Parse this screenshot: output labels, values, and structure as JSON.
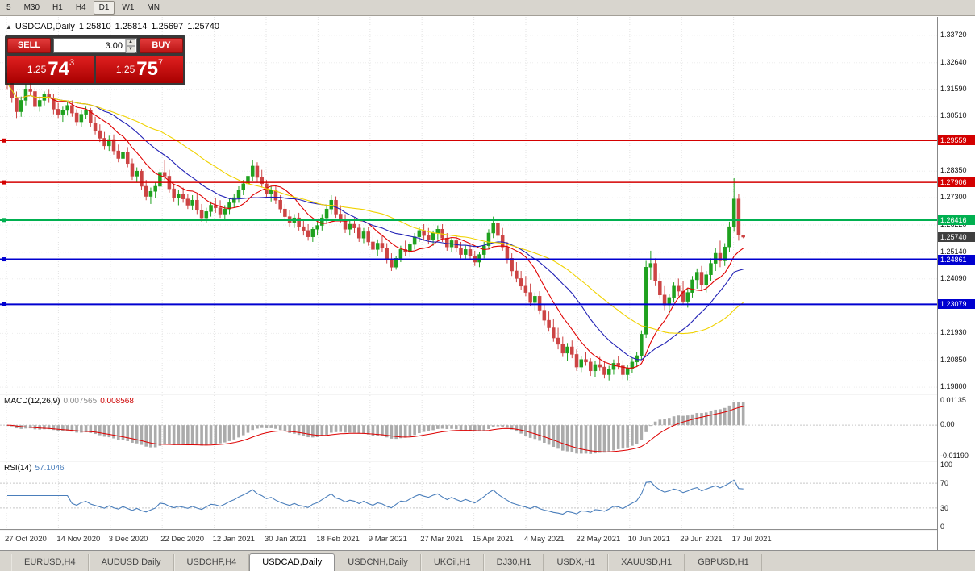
{
  "toolbar": {
    "timeframes": [
      "5",
      "M30",
      "H1",
      "H4",
      "D1",
      "W1",
      "MN"
    ],
    "active": "D1"
  },
  "chart_header": {
    "symbol": "USDCAD,Daily",
    "open": "1.25810",
    "high": "1.25814",
    "low": "1.25697",
    "close": "1.25740"
  },
  "one_click": {
    "sell_label": "SELL",
    "buy_label": "BUY",
    "lots": "3.00",
    "sell_price_prefix": "1.25",
    "sell_price_big": "74",
    "sell_price_sup": "3",
    "buy_price_prefix": "1.25",
    "buy_price_big": "75",
    "buy_price_sup": "7"
  },
  "price_axis": {
    "labels": [
      {
        "v": 1.3372,
        "t": "1.33720"
      },
      {
        "v": 1.3264,
        "t": "1.32640"
      },
      {
        "v": 1.3159,
        "t": "1.31590"
      },
      {
        "v": 1.3051,
        "t": "1.30510"
      },
      {
        "v": 1.2943,
        "t": "1.29430"
      },
      {
        "v": 1.2835,
        "t": "1.28350"
      },
      {
        "v": 1.273,
        "t": "1.27300"
      },
      {
        "v": 1.2622,
        "t": "1.26220"
      },
      {
        "v": 1.2514,
        "t": "1.25140"
      },
      {
        "v": 1.2409,
        "t": "1.24090"
      },
      {
        "v": 1.2301,
        "t": "1.23010"
      },
      {
        "v": 1.2193,
        "t": "1.21930"
      },
      {
        "v": 1.2085,
        "t": "1.20850"
      },
      {
        "v": 1.198,
        "t": "1.19800"
      }
    ],
    "last_price": {
      "v": 1.2574,
      "t": "1.25740",
      "color": "#3f3f3f"
    }
  },
  "hlines": [
    {
      "v": 1.29559,
      "t": "1.29559",
      "color": "#d40000",
      "w": 1.5
    },
    {
      "v": 1.27906,
      "t": "1.27906",
      "color": "#d40000",
      "w": 1.5
    },
    {
      "v": 1.26416,
      "t": "1.26416",
      "color": "#00b050",
      "w": 2.5
    },
    {
      "v": 1.24861,
      "t": "1.24861",
      "color": "#0000d0",
      "w": 2
    },
    {
      "v": 1.23079,
      "t": "1.23079",
      "color": "#0000d0",
      "w": 2
    }
  ],
  "chart_data": {
    "type": "candlestick",
    "symbol": "USDCAD",
    "timeframe": "Daily",
    "x_axis_labels": [
      "27 Oct 2020",
      "14 Nov 2020",
      "3 Dec 2020",
      "22 Dec 2020",
      "12 Jan 2021",
      "30 Jan 2021",
      "18 Feb 2021",
      "9 Mar 2021",
      "27 Mar 2021",
      "15 Apr 2021",
      "4 May 2021",
      "22 May 2021",
      "10 Jun 2021",
      "29 Jun 2021",
      "17 Jul 2021"
    ],
    "y_range": [
      1.1955,
      1.3445
    ],
    "colors": {
      "up": "#1fa11f",
      "down": "#cc4444"
    },
    "moving_averages": [
      {
        "period": 10,
        "color": "#e00000"
      },
      {
        "period": 20,
        "color": "#2121b5"
      },
      {
        "period": 34,
        "color": "#f0d200"
      }
    ],
    "ohlc": [
      [
        1.3225,
        1.325,
        1.316,
        1.3185
      ],
      [
        1.3185,
        1.3215,
        1.3105,
        1.3125
      ],
      [
        1.3125,
        1.315,
        1.3045,
        1.307
      ],
      [
        1.307,
        1.313,
        1.305,
        1.3115
      ],
      [
        1.3115,
        1.318,
        1.3095,
        1.316
      ],
      [
        1.316,
        1.322,
        1.3135,
        1.315
      ],
      [
        1.315,
        1.3165,
        1.3075,
        1.309
      ],
      [
        1.309,
        1.313,
        1.307,
        1.3115
      ],
      [
        1.3115,
        1.315,
        1.3095,
        1.314
      ],
      [
        1.314,
        1.316,
        1.3105,
        1.3125
      ],
      [
        1.3125,
        1.314,
        1.306,
        1.308
      ],
      [
        1.308,
        1.3105,
        1.3045,
        1.306
      ],
      [
        1.306,
        1.309,
        1.303,
        1.3075
      ],
      [
        1.3075,
        1.311,
        1.3055,
        1.3095
      ],
      [
        1.3095,
        1.3115,
        1.305,
        1.3065
      ],
      [
        1.3065,
        1.308,
        1.3015,
        1.303
      ],
      [
        1.303,
        1.3075,
        1.301,
        1.306
      ],
      [
        1.306,
        1.309,
        1.304,
        1.3075
      ],
      [
        1.3075,
        1.3085,
        1.301,
        1.3025
      ],
      [
        1.3025,
        1.305,
        1.298,
        1.2995
      ],
      [
        1.2995,
        1.302,
        1.295,
        1.2965
      ],
      [
        1.2965,
        1.299,
        1.292,
        1.2935
      ],
      [
        1.2935,
        1.2975,
        1.2915,
        1.296
      ],
      [
        1.296,
        1.298,
        1.29,
        1.2915
      ],
      [
        1.2915,
        1.294,
        1.287,
        1.2885
      ],
      [
        1.2885,
        1.2925,
        1.2865,
        1.291
      ],
      [
        1.291,
        1.293,
        1.285,
        1.2865
      ],
      [
        1.2865,
        1.2885,
        1.28,
        1.2815
      ],
      [
        1.2815,
        1.285,
        1.279,
        1.2835
      ],
      [
        1.2835,
        1.2845,
        1.276,
        1.2775
      ],
      [
        1.2775,
        1.28,
        1.272,
        1.2735
      ],
      [
        1.2735,
        1.277,
        1.2705,
        1.2755
      ],
      [
        1.2755,
        1.279,
        1.273,
        1.2775
      ],
      [
        1.2775,
        1.2845,
        1.276,
        1.283
      ],
      [
        1.283,
        1.288,
        1.28,
        1.2815
      ],
      [
        1.2815,
        1.284,
        1.275,
        1.2765
      ],
      [
        1.2765,
        1.2785,
        1.2715,
        1.273
      ],
      [
        1.273,
        1.276,
        1.27,
        1.2745
      ],
      [
        1.2745,
        1.277,
        1.271,
        1.2725
      ],
      [
        1.2725,
        1.2745,
        1.2685,
        1.27
      ],
      [
        1.27,
        1.274,
        1.268,
        1.272
      ],
      [
        1.272,
        1.2745,
        1.2665,
        1.268
      ],
      [
        1.268,
        1.2705,
        1.2635,
        1.265
      ],
      [
        1.265,
        1.269,
        1.263,
        1.2675
      ],
      [
        1.2675,
        1.2715,
        1.2655,
        1.27
      ],
      [
        1.27,
        1.273,
        1.267,
        1.269
      ],
      [
        1.269,
        1.272,
        1.265,
        1.2665
      ],
      [
        1.2665,
        1.27,
        1.264,
        1.2685
      ],
      [
        1.2685,
        1.2725,
        1.2665,
        1.271
      ],
      [
        1.271,
        1.2745,
        1.269,
        1.273
      ],
      [
        1.273,
        1.2775,
        1.271,
        1.276
      ],
      [
        1.276,
        1.28,
        1.274,
        1.2785
      ],
      [
        1.2785,
        1.283,
        1.2765,
        1.2815
      ],
      [
        1.2815,
        1.288,
        1.2795,
        1.2855
      ],
      [
        1.2855,
        1.287,
        1.279,
        1.281
      ],
      [
        1.281,
        1.284,
        1.277,
        1.2785
      ],
      [
        1.2785,
        1.28,
        1.273,
        1.2745
      ],
      [
        1.2745,
        1.2775,
        1.2715,
        1.276
      ],
      [
        1.276,
        1.278,
        1.2705,
        1.272
      ],
      [
        1.272,
        1.274,
        1.267,
        1.2685
      ],
      [
        1.2685,
        1.2705,
        1.264,
        1.2655
      ],
      [
        1.2655,
        1.268,
        1.2615,
        1.263
      ],
      [
        1.263,
        1.2665,
        1.261,
        1.265
      ],
      [
        1.265,
        1.267,
        1.26,
        1.2615
      ],
      [
        1.2615,
        1.264,
        1.258,
        1.26
      ],
      [
        1.26,
        1.2625,
        1.256,
        1.2575
      ],
      [
        1.2575,
        1.2615,
        1.2555,
        1.2605
      ],
      [
        1.2605,
        1.2635,
        1.258,
        1.262
      ],
      [
        1.262,
        1.2665,
        1.26,
        1.265
      ],
      [
        1.265,
        1.27,
        1.263,
        1.2685
      ],
      [
        1.2685,
        1.274,
        1.2665,
        1.272
      ],
      [
        1.272,
        1.2735,
        1.265,
        1.2665
      ],
      [
        1.2665,
        1.27,
        1.263,
        1.2645
      ],
      [
        1.2645,
        1.2665,
        1.259,
        1.2605
      ],
      [
        1.2605,
        1.264,
        1.258,
        1.2625
      ],
      [
        1.2625,
        1.265,
        1.259,
        1.261
      ],
      [
        1.261,
        1.2625,
        1.2555,
        1.257
      ],
      [
        1.257,
        1.261,
        1.255,
        1.2595
      ],
      [
        1.2595,
        1.2615,
        1.254,
        1.2555
      ],
      [
        1.2555,
        1.258,
        1.251,
        1.2525
      ],
      [
        1.2525,
        1.2565,
        1.25,
        1.255
      ],
      [
        1.255,
        1.258,
        1.2515,
        1.253
      ],
      [
        1.253,
        1.255,
        1.247,
        1.2485
      ],
      [
        1.2485,
        1.251,
        1.244,
        1.2455
      ],
      [
        1.2455,
        1.25,
        1.2445,
        1.249
      ],
      [
        1.249,
        1.254,
        1.2475,
        1.2525
      ],
      [
        1.2525,
        1.256,
        1.25,
        1.2515
      ],
      [
        1.2515,
        1.2555,
        1.2495,
        1.2545
      ],
      [
        1.2545,
        1.259,
        1.2525,
        1.2575
      ],
      [
        1.2575,
        1.2615,
        1.2555,
        1.26
      ],
      [
        1.26,
        1.2625,
        1.256,
        1.258
      ],
      [
        1.258,
        1.261,
        1.2545,
        1.2565
      ],
      [
        1.2565,
        1.26,
        1.254,
        1.259
      ],
      [
        1.259,
        1.262,
        1.2565,
        1.2605
      ],
      [
        1.2605,
        1.2625,
        1.2555,
        1.257
      ],
      [
        1.257,
        1.259,
        1.252,
        1.2535
      ],
      [
        1.2535,
        1.257,
        1.2515,
        1.256
      ],
      [
        1.256,
        1.258,
        1.2515,
        1.253
      ],
      [
        1.253,
        1.2555,
        1.249,
        1.2505
      ],
      [
        1.2505,
        1.254,
        1.2485,
        1.2525
      ],
      [
        1.2525,
        1.2545,
        1.2485,
        1.25
      ],
      [
        1.25,
        1.252,
        1.246,
        1.2475
      ],
      [
        1.2475,
        1.2515,
        1.2455,
        1.2505
      ],
      [
        1.2505,
        1.2555,
        1.249,
        1.254
      ],
      [
        1.254,
        1.2605,
        1.2525,
        1.259
      ],
      [
        1.259,
        1.2655,
        1.257,
        1.263
      ],
      [
        1.263,
        1.2645,
        1.256,
        1.258
      ],
      [
        1.258,
        1.261,
        1.252,
        1.2535
      ],
      [
        1.2535,
        1.2555,
        1.247,
        1.249
      ],
      [
        1.249,
        1.251,
        1.242,
        1.244
      ],
      [
        1.244,
        1.2475,
        1.2395,
        1.241
      ],
      [
        1.241,
        1.244,
        1.2365,
        1.238
      ],
      [
        1.238,
        1.242,
        1.234,
        1.2355
      ],
      [
        1.2355,
        1.239,
        1.23,
        1.2315
      ],
      [
        1.2315,
        1.2355,
        1.2285,
        1.234
      ],
      [
        1.234,
        1.236,
        1.227,
        1.2285
      ],
      [
        1.2285,
        1.231,
        1.2225,
        1.2245
      ],
      [
        1.2245,
        1.228,
        1.22,
        1.2215
      ],
      [
        1.2215,
        1.225,
        1.216,
        1.2175
      ],
      [
        1.2175,
        1.2215,
        1.213,
        1.215
      ],
      [
        1.215,
        1.218,
        1.21,
        1.2115
      ],
      [
        1.2115,
        1.2155,
        1.2085,
        1.214
      ],
      [
        1.214,
        1.2165,
        1.2095,
        1.211
      ],
      [
        1.211,
        1.213,
        1.2045,
        1.206
      ],
      [
        1.206,
        1.2105,
        1.204,
        1.209
      ],
      [
        1.209,
        1.212,
        1.2065,
        1.208
      ],
      [
        1.208,
        1.2095,
        1.2025,
        1.2045
      ],
      [
        1.2045,
        1.2085,
        1.202,
        1.207
      ],
      [
        1.207,
        1.21,
        1.2045,
        1.206
      ],
      [
        1.206,
        1.208,
        1.2015,
        1.203
      ],
      [
        1.203,
        1.2065,
        1.2007,
        1.205
      ],
      [
        1.205,
        1.209,
        1.203,
        1.2075
      ],
      [
        1.2075,
        1.2105,
        1.205,
        1.2065
      ],
      [
        1.2065,
        1.2085,
        1.201,
        1.203
      ],
      [
        1.203,
        1.207,
        1.2008,
        1.2055
      ],
      [
        1.2055,
        1.2095,
        1.2035,
        1.208
      ],
      [
        1.208,
        1.212,
        1.206,
        1.2105
      ],
      [
        1.2105,
        1.2205,
        1.209,
        1.219
      ],
      [
        1.219,
        1.248,
        1.2175,
        1.2455
      ],
      [
        1.2455,
        1.252,
        1.2405,
        1.247
      ],
      [
        1.247,
        1.249,
        1.238,
        1.24
      ],
      [
        1.24,
        1.243,
        1.233,
        1.2345
      ],
      [
        1.2345,
        1.238,
        1.2285,
        1.2305
      ],
      [
        1.2305,
        1.235,
        1.2265,
        1.2335
      ],
      [
        1.2335,
        1.2395,
        1.2315,
        1.238
      ],
      [
        1.238,
        1.241,
        1.234,
        1.236
      ],
      [
        1.236,
        1.24,
        1.2305,
        1.232
      ],
      [
        1.232,
        1.237,
        1.2295,
        1.2355
      ],
      [
        1.2355,
        1.242,
        1.2335,
        1.2405
      ],
      [
        1.2405,
        1.245,
        1.237,
        1.2435
      ],
      [
        1.2435,
        1.246,
        1.236,
        1.2385
      ],
      [
        1.2385,
        1.244,
        1.2355,
        1.2425
      ],
      [
        1.2425,
        1.249,
        1.24,
        1.247
      ],
      [
        1.247,
        1.253,
        1.244,
        1.251
      ],
      [
        1.251,
        1.256,
        1.2455,
        1.248
      ],
      [
        1.248,
        1.255,
        1.246,
        1.2535
      ],
      [
        1.2535,
        1.2635,
        1.2515,
        1.2615
      ],
      [
        1.2615,
        1.2807,
        1.2595,
        1.2725
      ],
      [
        1.2725,
        1.2745,
        1.256,
        1.2582
      ],
      [
        1.2581,
        1.25814,
        1.25697,
        1.2574
      ]
    ]
  },
  "macd_panel": {
    "title": "MACD(12,26,9)",
    "value_main": "0.007565",
    "value_signal": "0.008568",
    "scale_max": "0.01135",
    "scale_zero": "0.00",
    "scale_min": "-0.01190",
    "hist_color": "#ababab",
    "signal_color": "#dd0000"
  },
  "rsi_panel": {
    "title": "RSI(14)",
    "value": "57.1046",
    "levels": [
      "100",
      "70",
      "30",
      "0"
    ],
    "line_color": "#4a7ebb"
  },
  "tabs": {
    "active": "USDCAD,Daily",
    "items": [
      "EURUSD,H4",
      "AUDUSD,Daily",
      "USDCHF,H4",
      "USDCAD,Daily",
      "USDCNH,Daily",
      "UKOil,H1",
      "DJ30,H1",
      "USDX,H1",
      "XAUUSD,H1",
      "GBPUSD,H1"
    ]
  }
}
